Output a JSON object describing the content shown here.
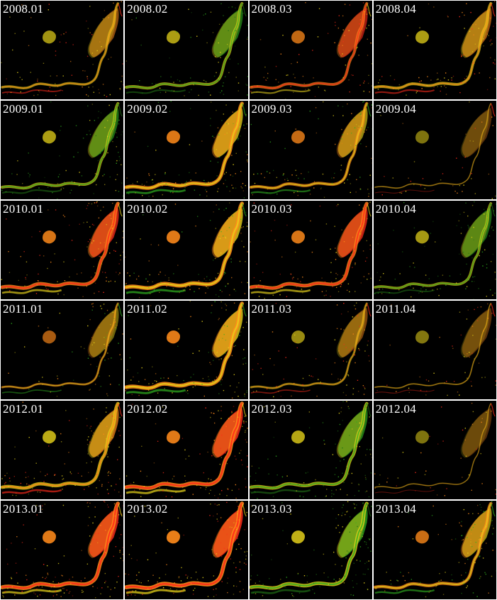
{
  "figure": {
    "columns": 4,
    "rows": 6,
    "background": "#000000",
    "separator_color": "#ffffff",
    "palette": {
      "red": "#ff2a1a",
      "orange": "#ff8a1a",
      "yellow": "#e6d21a",
      "green": "#2fae1f",
      "dark_green": "#1f6e14"
    },
    "panels": [
      {
        "label": "2008.01",
        "intensity": 0.45,
        "tone": "orange"
      },
      {
        "label": "2008.02",
        "intensity": 0.55,
        "tone": "green"
      },
      {
        "label": "2008.03",
        "intensity": 0.55,
        "tone": "red"
      },
      {
        "label": "2008.04",
        "intensity": 0.55,
        "tone": "orange"
      },
      {
        "label": "2009.01",
        "intensity": 0.55,
        "tone": "green"
      },
      {
        "label": "2009.02",
        "intensity": 0.8,
        "tone": "yellow"
      },
      {
        "label": "2009.03",
        "intensity": 0.6,
        "tone": "yellow"
      },
      {
        "label": "2009.04",
        "intensity": 0.12,
        "tone": "orange"
      },
      {
        "label": "2010.01",
        "intensity": 0.75,
        "tone": "red"
      },
      {
        "label": "2010.02",
        "intensity": 0.85,
        "tone": "yellow"
      },
      {
        "label": "2010.03",
        "intensity": 0.75,
        "tone": "red"
      },
      {
        "label": "2010.04",
        "intensity": 0.5,
        "tone": "green"
      },
      {
        "label": "2011.01",
        "intensity": 0.35,
        "tone": "yellow"
      },
      {
        "label": "2011.02",
        "intensity": 0.85,
        "tone": "yellow"
      },
      {
        "label": "2011.03",
        "intensity": 0.35,
        "tone": "orange"
      },
      {
        "label": "2011.04",
        "intensity": 0.15,
        "tone": "orange"
      },
      {
        "label": "2012.01",
        "intensity": 0.7,
        "tone": "orange"
      },
      {
        "label": "2012.02",
        "intensity": 0.85,
        "tone": "red"
      },
      {
        "label": "2012.03",
        "intensity": 0.65,
        "tone": "green"
      },
      {
        "label": "2012.04",
        "intensity": 0.1,
        "tone": "orange"
      },
      {
        "label": "2013.01",
        "intensity": 0.85,
        "tone": "red"
      },
      {
        "label": "2013.02",
        "intensity": 0.9,
        "tone": "red"
      },
      {
        "label": "2013.03",
        "intensity": 0.75,
        "tone": "green"
      },
      {
        "label": "2013.04",
        "intensity": 0.65,
        "tone": "yellow"
      }
    ]
  }
}
